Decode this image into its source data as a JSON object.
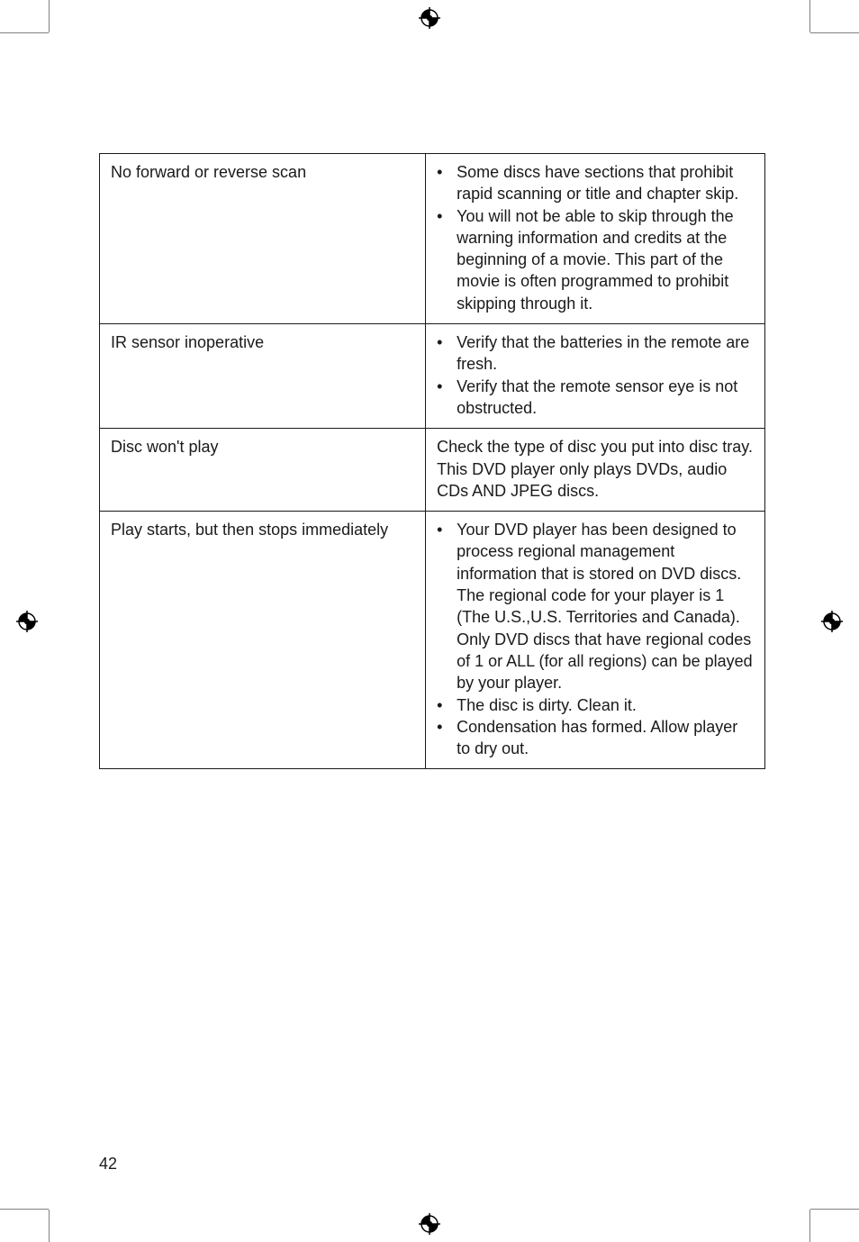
{
  "page_number": "42",
  "colors": {
    "text": "#1a1a1a",
    "border": "#1a1a1a",
    "background": "#ffffff",
    "crop": "#808080"
  },
  "table": {
    "rows": [
      {
        "problem": "No forward or reverse scan",
        "solution_type": "bullets",
        "bullets": [
          "Some discs have sections that prohibit rapid scanning or title and chapter skip.",
          "You will not be able to skip through the warning information and credits at the beginning of a movie. This part of the movie is often programmed to prohibit skipping through it."
        ]
      },
      {
        "problem": "IR sensor inoperative",
        "solution_type": "bullets",
        "bullets": [
          "Verify that the batteries in the remote are fresh.",
          "Verify that the remote sensor eye is not obstructed."
        ]
      },
      {
        "problem": "Disc won't play",
        "solution_type": "text",
        "text": "Check the type of disc you put into disc tray. This DVD player only plays DVDs, audio CDs AND JPEG discs."
      },
      {
        "problem": "Play starts, but then stops immediately",
        "solution_type": "bullets",
        "bullets": [
          "Your DVD player has been designed to process regional management information that is stored on DVD discs. The regional code for your player is 1 (The U.S.,U.S. Territories and Canada). Only DVD discs that have regional codes of 1 or ALL (for all regions) can be played by your player.",
          "The disc is dirty. Clean it.",
          "Condensation has formed. Allow player to dry out."
        ]
      }
    ]
  }
}
